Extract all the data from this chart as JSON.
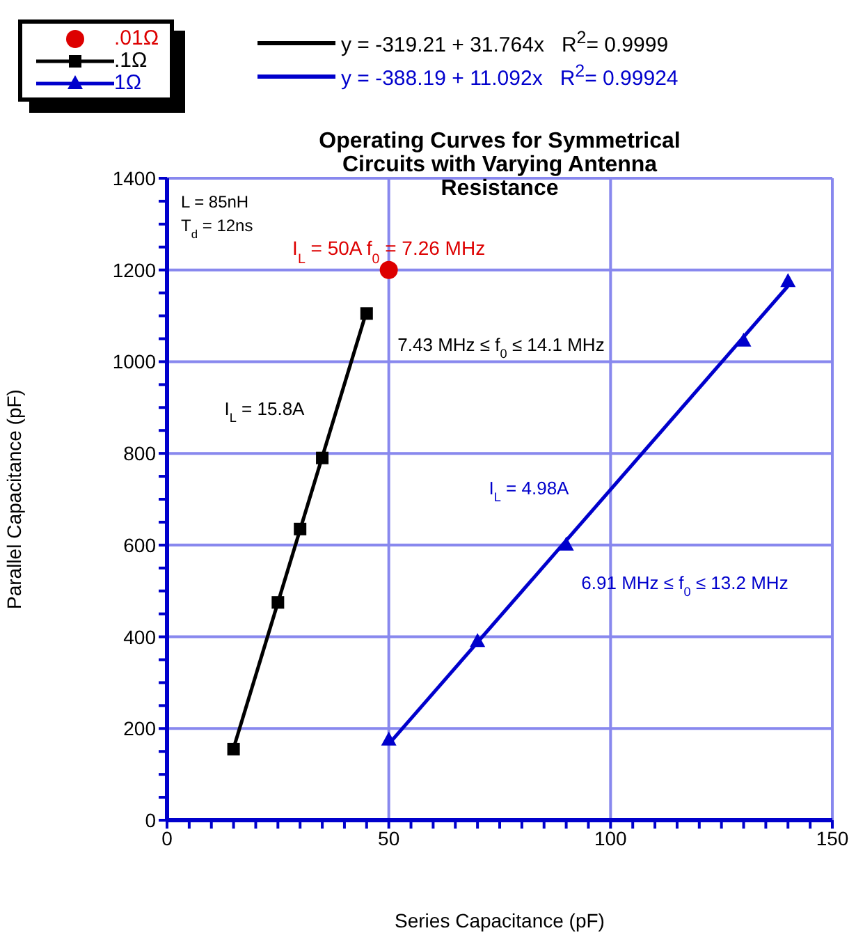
{
  "chart_data": {
    "type": "scatter",
    "title": "Operating Curves for Symmetrical Circuits with Varying Antenna Resistance",
    "xlabel": "Series Capacitance (pF)",
    "ylabel": "Parallel Capacitance (pF)",
    "xlim": [
      0,
      150
    ],
    "ylim": [
      0,
      1400
    ],
    "xticks": [
      0,
      {
        "value": 5,
        "label": null
      },
      {
        "value": 10,
        "label": null
      },
      {
        "value": 15,
        "label": null
      },
      {
        "value": 20,
        "label": null
      },
      {
        "value": 25,
        "label": null
      },
      {
        "value": 30,
        "label": null
      },
      {
        "value": 35,
        "label": null
      },
      {
        "value": 40,
        "label": null
      },
      {
        "value": 45,
        "label": null
      },
      50,
      {
        "value": 55,
        "label": null
      },
      {
        "value": 60,
        "label": null
      },
      {
        "value": 65,
        "label": null
      },
      {
        "value": 70,
        "label": null
      },
      {
        "value": 75,
        "label": null
      },
      {
        "value": 80,
        "label": null
      },
      {
        "value": 85,
        "label": null
      },
      {
        "value": 90,
        "label": null
      },
      {
        "value": 95,
        "label": null
      },
      100,
      {
        "value": 105,
        "label": null
      },
      {
        "value": 110,
        "label": null
      },
      {
        "value": 115,
        "label": null
      },
      {
        "value": 120,
        "label": null
      },
      {
        "value": 125,
        "label": null
      },
      {
        "value": 130,
        "label": null
      },
      {
        "value": 135,
        "label": null
      },
      {
        "value": 140,
        "label": null
      },
      {
        "value": 145,
        "label": null
      },
      150
    ],
    "yticks": [
      0,
      {
        "value": 50,
        "label": null
      },
      {
        "value": 100,
        "label": null
      },
      {
        "value": 150,
        "label": null
      },
      200,
      {
        "value": 250,
        "label": null
      },
      {
        "value": 300,
        "label": null
      },
      {
        "value": 350,
        "label": null
      },
      400,
      {
        "value": 450,
        "label": null
      },
      {
        "value": 500,
        "label": null
      },
      {
        "value": 550,
        "label": null
      },
      600,
      {
        "value": 650,
        "label": null
      },
      {
        "value": 700,
        "label": null
      },
      {
        "value": 750,
        "label": null
      },
      800,
      {
        "value": 850,
        "label": null
      },
      {
        "value": 900,
        "label": null
      },
      {
        "value": 950,
        "label": null
      },
      1000,
      {
        "value": 1050,
        "label": null
      },
      {
        "value": 1100,
        "label": null
      },
      {
        "value": 1150,
        "label": null
      },
      1200,
      {
        "value": 1250,
        "label": null
      },
      {
        "value": 1300,
        "label": null
      },
      {
        "value": 1350,
        "label": null
      },
      1400
    ],
    "grid": true,
    "legend": "top left",
    "series": [
      {
        "name": ".01Ω",
        "marker": "circle",
        "color": "#dd0000",
        "x": [
          50
        ],
        "values": [
          1200
        ]
      },
      {
        "name": ".1Ω",
        "marker": "square",
        "color": "#000000",
        "x": [
          15,
          25,
          30,
          35,
          45
        ],
        "values": [
          155,
          475,
          635,
          790,
          1105
        ]
      },
      {
        "name": "1Ω",
        "marker": "triangle",
        "color": "#0000cc",
        "x": [
          50,
          70,
          90,
          130,
          140
        ],
        "values": [
          175,
          390,
          600,
          1045,
          1175
        ]
      },
      {
        "name": "y = -319.21 + 31.764x   R$^{2}$= 0.9999",
        "type": "line",
        "marker": "none",
        "color": "#000000",
        "x": [
          15,
          45
        ],
        "values": [
          157,
          1110
        ]
      },
      {
        "name": "y = -388.19 + 11.092x   R$^{2}$= 0.99924",
        "type": "line",
        "marker": "none",
        "color": "#0000cc",
        "x": [
          50,
          140
        ],
        "values": [
          166,
          1165
        ]
      }
    ],
    "annotations": [
      "L = 85nH",
      "T$_{d}$ = 12ns",
      {
        "text": "I$_{L}$ = 50A   f$_{0}$ = 7.26 MHz",
        "x": 50,
        "y": 1200
      },
      "7.43 MHz ≤ f$_{0}$ ≤ 14.1 MHz",
      "I$_{L}$ = 15.8A",
      "I$_{L}$ = 4.98A",
      "6.91 MHz ≤ f$_{0}$ ≤ 13.2 MHz"
    ]
  }
}
